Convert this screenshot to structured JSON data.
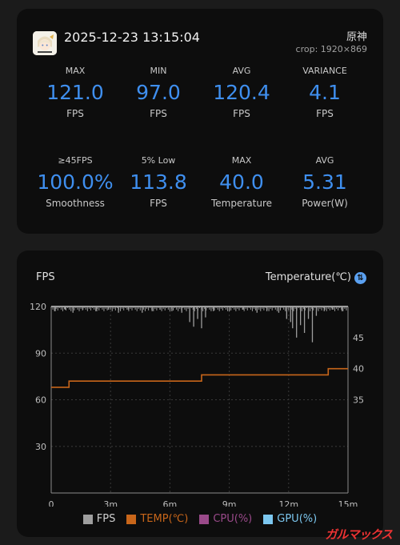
{
  "summary": {
    "timestamp": "2025-12-23 13:15:04",
    "game_name": "原神",
    "crop": "crop: 1920×869",
    "stats": [
      {
        "label": "MAX",
        "value": "121.0",
        "unit": "FPS"
      },
      {
        "label": "MIN",
        "value": "97.0",
        "unit": "FPS"
      },
      {
        "label": "AVG",
        "value": "120.4",
        "unit": "FPS"
      },
      {
        "label": "VARIANCE",
        "value": "4.1",
        "unit": "FPS"
      },
      {
        "label": "≥45FPS",
        "value": "100.0%",
        "unit": "Smoothness"
      },
      {
        "label": "5% Low",
        "value": "113.8",
        "unit": "FPS"
      },
      {
        "label": "MAX",
        "value": "40.0",
        "unit": "Temperature"
      },
      {
        "label": "AVG",
        "value": "5.31",
        "unit": "Power(W)"
      }
    ]
  },
  "chart_header": {
    "left_title": "FPS",
    "right_title": "Temperature(℃)"
  },
  "chart_data": {
    "type": "line",
    "x_ticks": [
      "0",
      "3m",
      "6m",
      "9m",
      "12m",
      "15m"
    ],
    "xlim": [
      0,
      15
    ],
    "y_left_ticks": [
      "120",
      "90",
      "60",
      "30"
    ],
    "ylim_left": [
      0,
      120
    ],
    "y_right_ticks": [
      "45",
      "40",
      "35"
    ],
    "ylim_right": [
      20,
      50
    ],
    "grid": true,
    "series": [
      {
        "name": "FPS",
        "color": "#9e9e9e",
        "baseline": 120,
        "dips": [
          [
            0.2,
            117
          ],
          [
            0.7,
            118
          ],
          [
            1.1,
            116
          ],
          [
            1.6,
            118
          ],
          [
            2.3,
            117
          ],
          [
            2.9,
            118
          ],
          [
            3.4,
            116
          ],
          [
            3.9,
            118
          ],
          [
            4.6,
            116
          ],
          [
            5.1,
            117
          ],
          [
            5.5,
            118
          ],
          [
            6.1,
            117
          ],
          [
            6.6,
            116
          ],
          [
            7.0,
            110
          ],
          [
            7.2,
            107
          ],
          [
            7.4,
            112
          ],
          [
            7.6,
            106
          ],
          [
            7.8,
            113
          ],
          [
            8.2,
            117
          ],
          [
            9.0,
            117
          ],
          [
            9.7,
            118
          ],
          [
            10.4,
            116
          ],
          [
            10.9,
            117
          ],
          [
            11.5,
            116
          ],
          [
            11.9,
            112
          ],
          [
            12.1,
            110
          ],
          [
            12.2,
            106
          ],
          [
            12.4,
            100
          ],
          [
            12.6,
            108
          ],
          [
            12.8,
            103
          ],
          [
            13.0,
            112
          ],
          [
            13.2,
            97
          ],
          [
            13.4,
            114
          ],
          [
            13.8,
            117
          ],
          [
            14.2,
            118
          ],
          [
            14.7,
            117
          ]
        ]
      },
      {
        "name": "TEMP(℃)",
        "color": "#c8661a",
        "points": [
          [
            0,
            37
          ],
          [
            0.9,
            37
          ],
          [
            0.9,
            38
          ],
          [
            7.6,
            38
          ],
          [
            7.6,
            39
          ],
          [
            14.0,
            39
          ],
          [
            14.0,
            40
          ],
          [
            15,
            40
          ]
        ]
      },
      {
        "name": "CPU(%)",
        "color": "#9a4a8a",
        "points": []
      },
      {
        "name": "GPU(%)",
        "color": "#7cc7ef",
        "points": []
      }
    ]
  },
  "legend": [
    {
      "label": "FPS",
      "color": "#9e9e9e"
    },
    {
      "label": "TEMP(℃)",
      "color": "#c8661a"
    },
    {
      "label": "CPU(%)",
      "color": "#9a4a8a"
    },
    {
      "label": "GPU(%)",
      "color": "#7cc7ef"
    }
  ],
  "watermark": {
    "prefix": "ガルマ",
    "suffix": "ックス"
  }
}
